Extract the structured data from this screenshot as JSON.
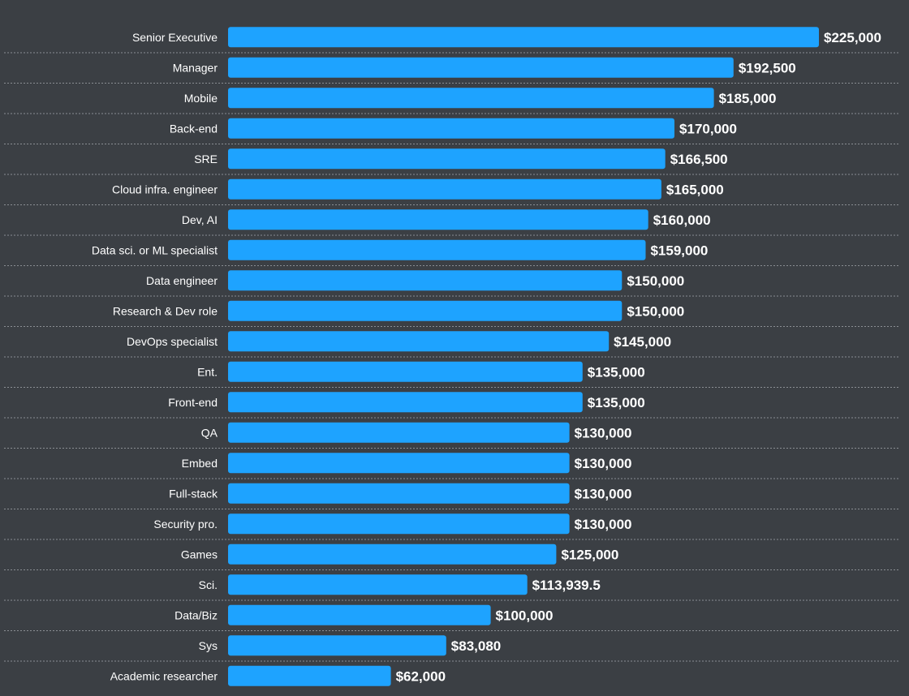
{
  "chart_data": {
    "type": "bar",
    "orientation": "horizontal",
    "title": "",
    "xlabel": "",
    "ylabel": "",
    "xlim": [
      0,
      225000
    ],
    "grid": false,
    "legend": "none",
    "colors": {
      "background": "#3b3f44",
      "bar": "#1ea3ff",
      "text": "#ffffff",
      "divider": "#8a8e93"
    },
    "categories": [
      "Senior Executive",
      "Manager",
      "Mobile",
      "Back-end",
      "SRE",
      "Cloud infra. engineer",
      "Dev, AI",
      "Data sci. or ML specialist",
      "Data engineer",
      "Research & Dev role",
      "DevOps specialist",
      "Ent.",
      "Front-end",
      "QA",
      "Embed",
      "Full-stack",
      "Security pro.",
      "Games",
      "Sci.",
      "Data/Biz",
      "Sys",
      "Academic researcher"
    ],
    "values": [
      225000,
      192500,
      185000,
      170000,
      166500,
      165000,
      160000,
      159000,
      150000,
      150000,
      145000,
      135000,
      135000,
      130000,
      130000,
      130000,
      130000,
      125000,
      113939.5,
      100000,
      83080,
      62000
    ],
    "value_labels": [
      "$225,000",
      "$192,500",
      "$185,000",
      "$170,000",
      "$166,500",
      "$165,000",
      "$160,000",
      "$159,000",
      "$150,000",
      "$150,000",
      "$145,000",
      "$135,000",
      "$135,000",
      "$130,000",
      "$130,000",
      "$130,000",
      "$130,000",
      "$125,000",
      "$113,939.5",
      "$100,000",
      "$83,080",
      "$62,000"
    ]
  }
}
